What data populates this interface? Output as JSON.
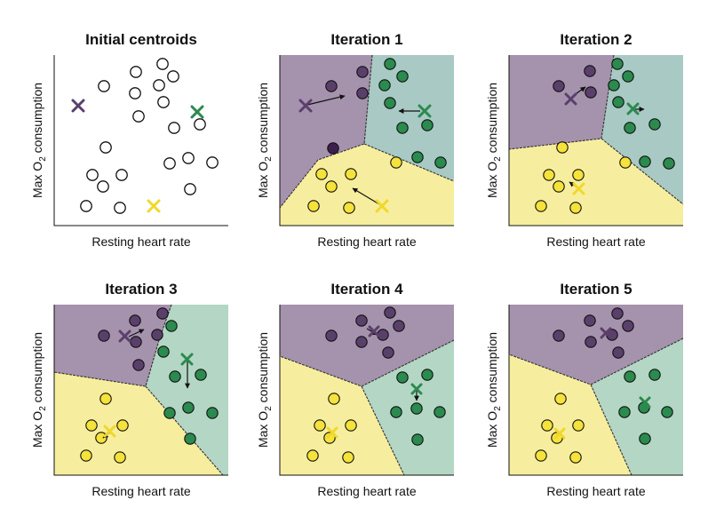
{
  "panels": [
    {
      "title": "Initial centroids",
      "xlabel": "Resting heart rate",
      "ylabel_prefix": "Max O",
      "ylabel_sub": "2",
      "ylabel_suffix": " consumption",
      "regions": false
    },
    {
      "title": "Iteration 1",
      "xlabel": "Resting heart rate",
      "ylabel_prefix": "Max O",
      "ylabel_sub": "2",
      "ylabel_suffix": " consumption",
      "regions": true
    },
    {
      "title": "Iteration 2",
      "xlabel": "Resting heart rate",
      "ylabel_prefix": "Max O",
      "ylabel_sub": "2",
      "ylabel_suffix": " consumption",
      "regions": true
    },
    {
      "title": "Iteration 3",
      "xlabel": "Resting heart rate",
      "ylabel_prefix": "Max O",
      "ylabel_sub": "2",
      "ylabel_suffix": " consumption",
      "regions": true
    },
    {
      "title": "Iteration 4",
      "xlabel": "Resting heart rate",
      "ylabel_prefix": "Max O",
      "ylabel_sub": "2",
      "ylabel_suffix": " consumption",
      "regions": true
    },
    {
      "title": "Iteration 5",
      "xlabel": "Resting heart rate",
      "ylabel_prefix": "Max O",
      "ylabel_sub": "2",
      "ylabel_suffix": " consumption",
      "regions": true
    }
  ],
  "colors": {
    "purple": "#5a3f6b",
    "purple_region": "#a592ad",
    "green": "#2b8a4e",
    "green_region": "#a8c9c4",
    "green_region_late": "#b4d6c4",
    "yellow": "#f5e23a",
    "yellow_region": "#f6ee9e",
    "dark_point": "#3d1f4d",
    "arrow": "#111111"
  }
}
